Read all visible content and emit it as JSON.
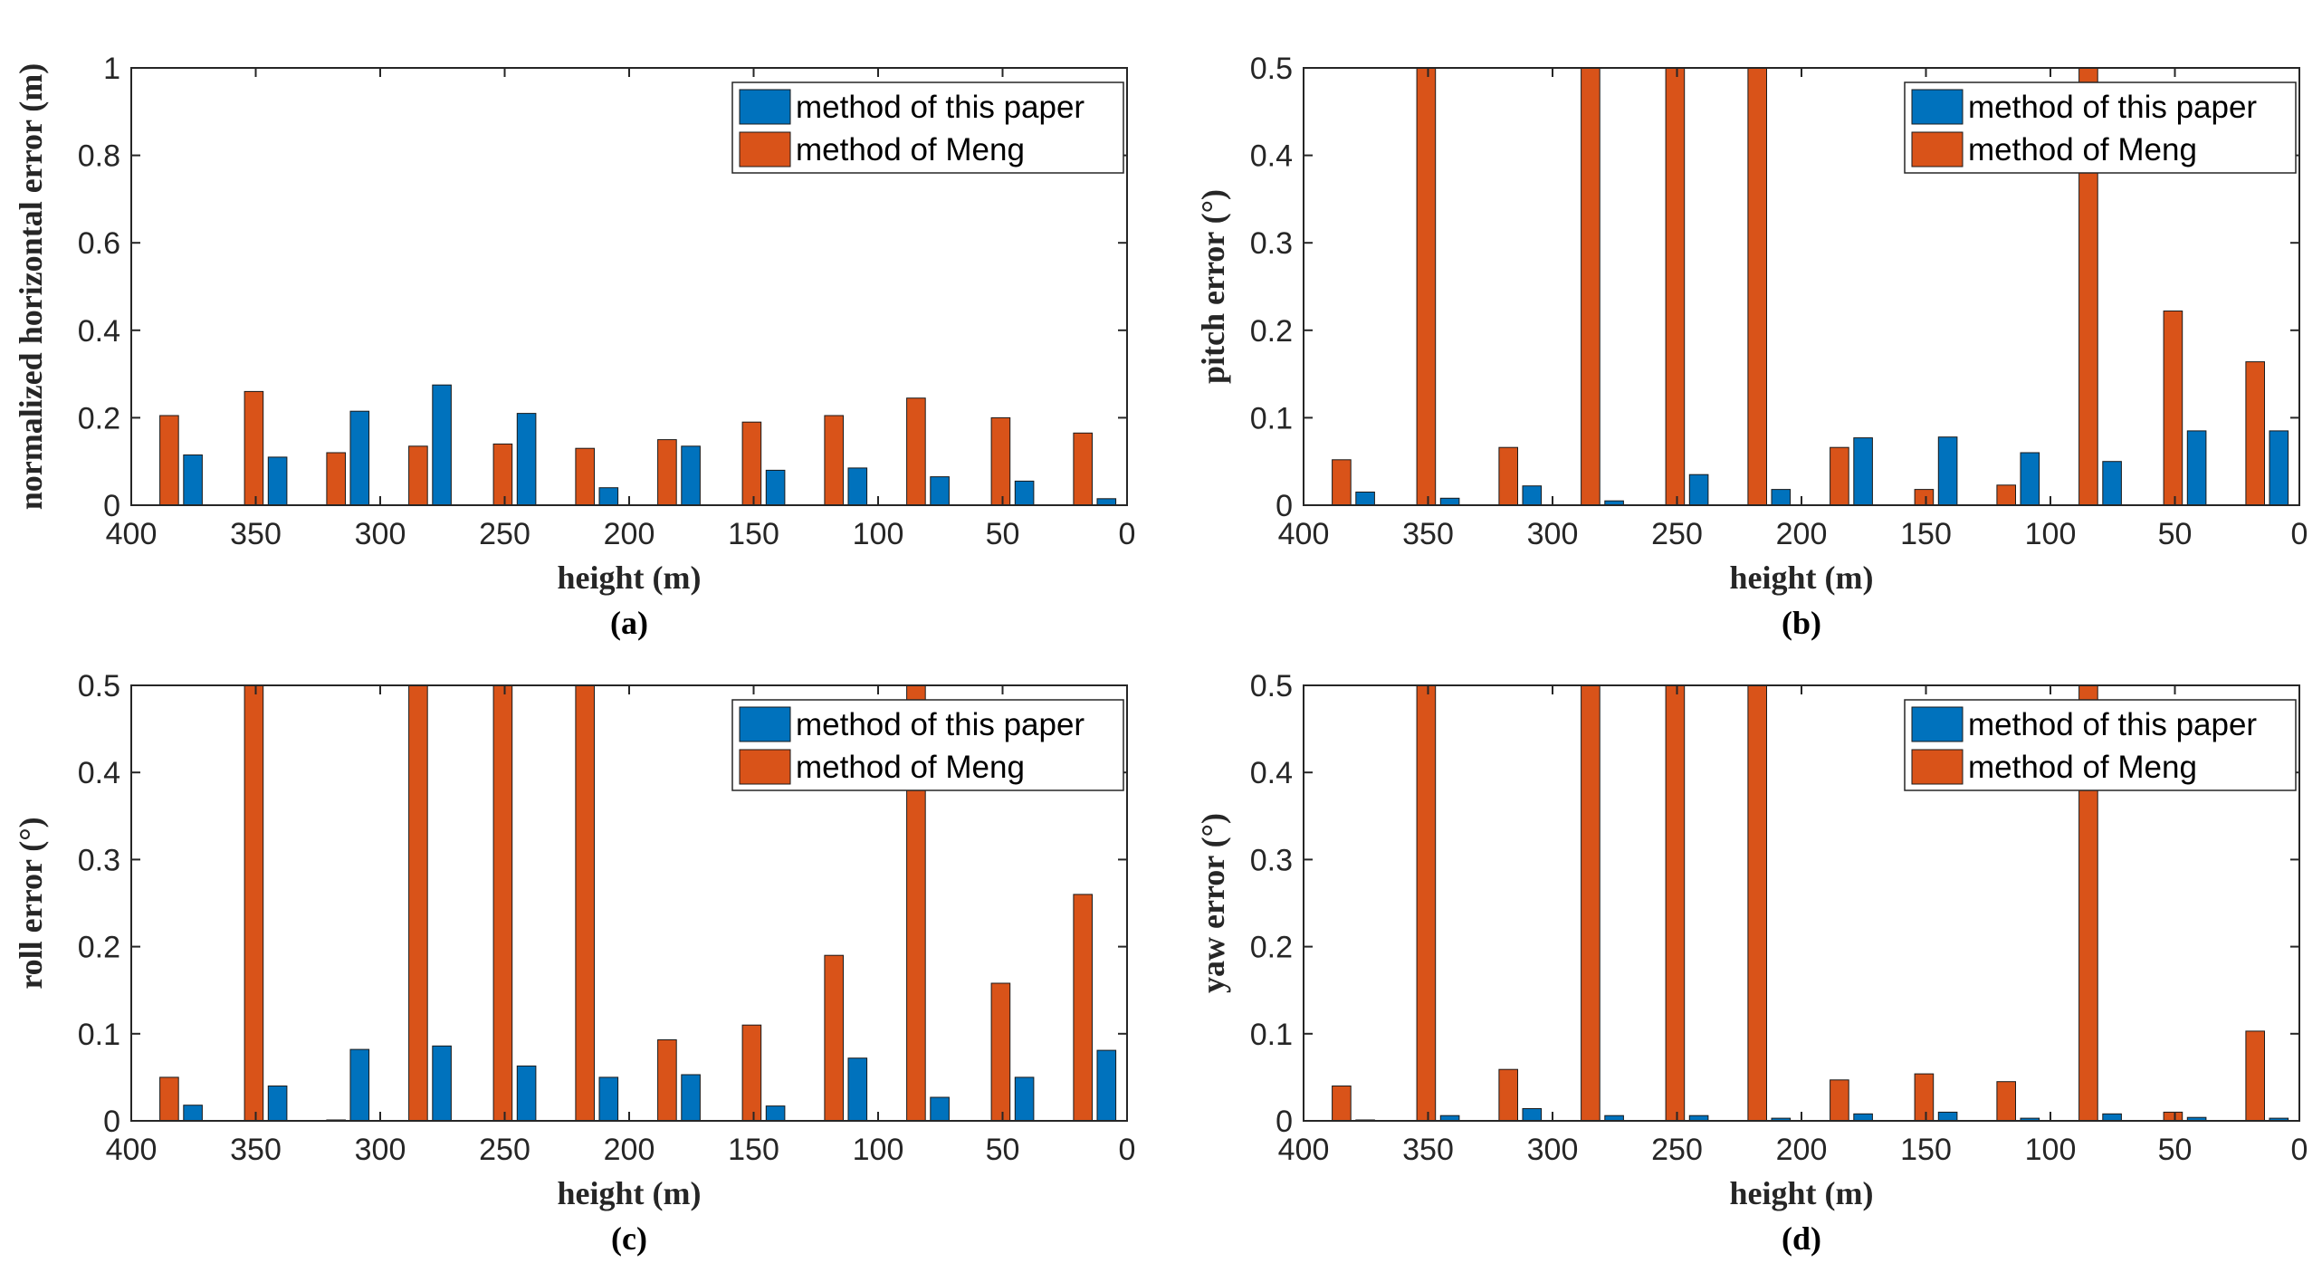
{
  "colors": {
    "series_a": "#0072BD",
    "series_b": "#D95319",
    "axis": "#262626"
  },
  "chart_data": [
    {
      "type": "bar",
      "caption": "(a)",
      "xlabel": "height (m)",
      "ylabel": "normalized horizontal error (m)",
      "xlim": [
        400,
        0
      ],
      "ylim": [
        0,
        1
      ],
      "xticks": [
        "400",
        "350",
        "300",
        "250",
        "200",
        "150",
        "100",
        "50",
        "0"
      ],
      "yticks": [
        "0",
        "0.2",
        "0.4",
        "0.6",
        "0.8",
        "1"
      ],
      "categories": [
        380,
        346,
        313,
        280,
        246,
        213,
        180,
        146,
        113,
        80,
        46,
        13
      ],
      "legend": {
        "position": "top-right",
        "entries": [
          "method of this paper",
          "method of Meng"
        ]
      },
      "series": [
        {
          "name": "method of this paper",
          "color": "#0072BD",
          "values": [
            0.115,
            0.11,
            0.215,
            0.275,
            0.21,
            0.04,
            0.135,
            0.08,
            0.085,
            0.065,
            0.055,
            0.015
          ]
        },
        {
          "name": "method of Meng",
          "color": "#D95319",
          "values": [
            0.205,
            0.26,
            0.12,
            0.135,
            0.14,
            0.13,
            0.15,
            0.19,
            0.205,
            0.245,
            0.2,
            0.165
          ]
        }
      ]
    },
    {
      "type": "bar",
      "caption": "(b)",
      "xlabel": "height (m)",
      "ylabel": "pitch error (°)",
      "xlim": [
        400,
        0
      ],
      "ylim": [
        0,
        0.5
      ],
      "xticks": [
        "400",
        "350",
        "300",
        "250",
        "200",
        "150",
        "100",
        "50",
        "0"
      ],
      "yticks": [
        "0",
        "0.1",
        "0.2",
        "0.3",
        "0.4",
        "0.5"
      ],
      "categories": [
        380,
        346,
        313,
        280,
        246,
        213,
        180,
        146,
        113,
        80,
        46,
        13
      ],
      "legend": {
        "position": "top-right",
        "entries": [
          "method of this paper",
          "method of Meng"
        ]
      },
      "series": [
        {
          "name": "method of this paper",
          "color": "#0072BD",
          "values": [
            0.015,
            0.008,
            0.022,
            0.005,
            0.035,
            0.018,
            0.077,
            0.078,
            0.06,
            0.05,
            0.085,
            0.085
          ]
        },
        {
          "name": "method of Meng",
          "color": "#D95319",
          "values": [
            0.052,
            0.5,
            0.066,
            0.5,
            0.5,
            0.5,
            0.066,
            0.018,
            0.023,
            0.5,
            0.222,
            0.164
          ]
        }
      ]
    },
    {
      "type": "bar",
      "caption": "(c)",
      "xlabel": "height (m)",
      "ylabel": "roll error (°)",
      "xlim": [
        400,
        0
      ],
      "ylim": [
        0,
        0.5
      ],
      "xticks": [
        "400",
        "350",
        "300",
        "250",
        "200",
        "150",
        "100",
        "50",
        "0"
      ],
      "yticks": [
        "0",
        "0.1",
        "0.2",
        "0.3",
        "0.4",
        "0.5"
      ],
      "categories": [
        380,
        346,
        313,
        280,
        246,
        213,
        180,
        146,
        113,
        80,
        46,
        13
      ],
      "legend": {
        "position": "top-right",
        "entries": [
          "method of this paper",
          "method of Meng"
        ]
      },
      "series": [
        {
          "name": "method of this paper",
          "color": "#0072BD",
          "values": [
            0.018,
            0.04,
            0.082,
            0.086,
            0.063,
            0.05,
            0.053,
            0.017,
            0.072,
            0.027,
            0.05,
            0.081
          ]
        },
        {
          "name": "method of Meng",
          "color": "#D95319",
          "values": [
            0.05,
            0.5,
            0.001,
            0.5,
            0.5,
            0.5,
            0.093,
            0.11,
            0.19,
            0.5,
            0.158,
            0.26
          ]
        }
      ]
    },
    {
      "type": "bar",
      "caption": "(d)",
      "xlabel": "height (m)",
      "ylabel": "yaw error (°)",
      "xlim": [
        400,
        0
      ],
      "ylim": [
        0,
        0.5
      ],
      "xticks": [
        "400",
        "350",
        "300",
        "250",
        "200",
        "150",
        "100",
        "50",
        "0"
      ],
      "yticks": [
        "0",
        "0.1",
        "0.2",
        "0.3",
        "0.4",
        "0.5"
      ],
      "categories": [
        380,
        346,
        313,
        280,
        246,
        213,
        180,
        146,
        113,
        80,
        46,
        13
      ],
      "legend": {
        "position": "top-right",
        "entries": [
          "method of this paper",
          "method of Meng"
        ]
      },
      "series": [
        {
          "name": "method of this paper",
          "color": "#0072BD",
          "values": [
            0.001,
            0.006,
            0.014,
            0.006,
            0.006,
            0.003,
            0.008,
            0.01,
            0.003,
            0.008,
            0.004,
            0.003
          ]
        },
        {
          "name": "method of Meng",
          "color": "#D95319",
          "values": [
            0.04,
            0.5,
            0.059,
            0.5,
            0.5,
            0.5,
            0.047,
            0.054,
            0.045,
            0.5,
            0.01,
            0.103
          ]
        }
      ]
    }
  ]
}
